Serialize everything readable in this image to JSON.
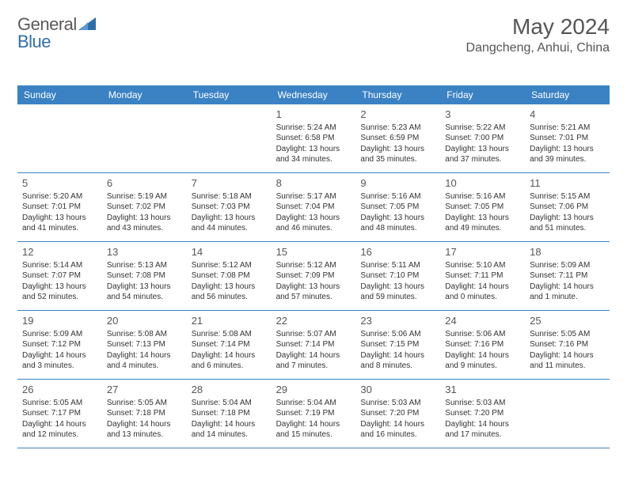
{
  "logo": {
    "word1": "General",
    "word2": "Blue"
  },
  "title": "May 2024",
  "location": "Dangcheng, Anhui, China",
  "colors": {
    "header_bg": "#3b82c4",
    "header_text": "#ffffff",
    "border": "#3b82c4",
    "text": "#333333",
    "title_text": "#555555",
    "background": "#ffffff"
  },
  "typography": {
    "title_fontsize": 28,
    "location_fontsize": 16,
    "dayheader_fontsize": 12,
    "daynum_fontsize": 13,
    "body_fontsize": 10
  },
  "dayNames": [
    "Sunday",
    "Monday",
    "Tuesday",
    "Wednesday",
    "Thursday",
    "Friday",
    "Saturday"
  ],
  "weeks": [
    [
      {
        "n": "",
        "sr": "",
        "ss": "",
        "dl": ""
      },
      {
        "n": "",
        "sr": "",
        "ss": "",
        "dl": ""
      },
      {
        "n": "",
        "sr": "",
        "ss": "",
        "dl": ""
      },
      {
        "n": "1",
        "sr": "Sunrise: 5:24 AM",
        "ss": "Sunset: 6:58 PM",
        "dl": "Daylight: 13 hours and 34 minutes."
      },
      {
        "n": "2",
        "sr": "Sunrise: 5:23 AM",
        "ss": "Sunset: 6:59 PM",
        "dl": "Daylight: 13 hours and 35 minutes."
      },
      {
        "n": "3",
        "sr": "Sunrise: 5:22 AM",
        "ss": "Sunset: 7:00 PM",
        "dl": "Daylight: 13 hours and 37 minutes."
      },
      {
        "n": "4",
        "sr": "Sunrise: 5:21 AM",
        "ss": "Sunset: 7:01 PM",
        "dl": "Daylight: 13 hours and 39 minutes."
      }
    ],
    [
      {
        "n": "5",
        "sr": "Sunrise: 5:20 AM",
        "ss": "Sunset: 7:01 PM",
        "dl": "Daylight: 13 hours and 41 minutes."
      },
      {
        "n": "6",
        "sr": "Sunrise: 5:19 AM",
        "ss": "Sunset: 7:02 PM",
        "dl": "Daylight: 13 hours and 43 minutes."
      },
      {
        "n": "7",
        "sr": "Sunrise: 5:18 AM",
        "ss": "Sunset: 7:03 PM",
        "dl": "Daylight: 13 hours and 44 minutes."
      },
      {
        "n": "8",
        "sr": "Sunrise: 5:17 AM",
        "ss": "Sunset: 7:04 PM",
        "dl": "Daylight: 13 hours and 46 minutes."
      },
      {
        "n": "9",
        "sr": "Sunrise: 5:16 AM",
        "ss": "Sunset: 7:05 PM",
        "dl": "Daylight: 13 hours and 48 minutes."
      },
      {
        "n": "10",
        "sr": "Sunrise: 5:16 AM",
        "ss": "Sunset: 7:05 PM",
        "dl": "Daylight: 13 hours and 49 minutes."
      },
      {
        "n": "11",
        "sr": "Sunrise: 5:15 AM",
        "ss": "Sunset: 7:06 PM",
        "dl": "Daylight: 13 hours and 51 minutes."
      }
    ],
    [
      {
        "n": "12",
        "sr": "Sunrise: 5:14 AM",
        "ss": "Sunset: 7:07 PM",
        "dl": "Daylight: 13 hours and 52 minutes."
      },
      {
        "n": "13",
        "sr": "Sunrise: 5:13 AM",
        "ss": "Sunset: 7:08 PM",
        "dl": "Daylight: 13 hours and 54 minutes."
      },
      {
        "n": "14",
        "sr": "Sunrise: 5:12 AM",
        "ss": "Sunset: 7:08 PM",
        "dl": "Daylight: 13 hours and 56 minutes."
      },
      {
        "n": "15",
        "sr": "Sunrise: 5:12 AM",
        "ss": "Sunset: 7:09 PM",
        "dl": "Daylight: 13 hours and 57 minutes."
      },
      {
        "n": "16",
        "sr": "Sunrise: 5:11 AM",
        "ss": "Sunset: 7:10 PM",
        "dl": "Daylight: 13 hours and 59 minutes."
      },
      {
        "n": "17",
        "sr": "Sunrise: 5:10 AM",
        "ss": "Sunset: 7:11 PM",
        "dl": "Daylight: 14 hours and 0 minutes."
      },
      {
        "n": "18",
        "sr": "Sunrise: 5:09 AM",
        "ss": "Sunset: 7:11 PM",
        "dl": "Daylight: 14 hours and 1 minute."
      }
    ],
    [
      {
        "n": "19",
        "sr": "Sunrise: 5:09 AM",
        "ss": "Sunset: 7:12 PM",
        "dl": "Daylight: 14 hours and 3 minutes."
      },
      {
        "n": "20",
        "sr": "Sunrise: 5:08 AM",
        "ss": "Sunset: 7:13 PM",
        "dl": "Daylight: 14 hours and 4 minutes."
      },
      {
        "n": "21",
        "sr": "Sunrise: 5:08 AM",
        "ss": "Sunset: 7:14 PM",
        "dl": "Daylight: 14 hours and 6 minutes."
      },
      {
        "n": "22",
        "sr": "Sunrise: 5:07 AM",
        "ss": "Sunset: 7:14 PM",
        "dl": "Daylight: 14 hours and 7 minutes."
      },
      {
        "n": "23",
        "sr": "Sunrise: 5:06 AM",
        "ss": "Sunset: 7:15 PM",
        "dl": "Daylight: 14 hours and 8 minutes."
      },
      {
        "n": "24",
        "sr": "Sunrise: 5:06 AM",
        "ss": "Sunset: 7:16 PM",
        "dl": "Daylight: 14 hours and 9 minutes."
      },
      {
        "n": "25",
        "sr": "Sunrise: 5:05 AM",
        "ss": "Sunset: 7:16 PM",
        "dl": "Daylight: 14 hours and 11 minutes."
      }
    ],
    [
      {
        "n": "26",
        "sr": "Sunrise: 5:05 AM",
        "ss": "Sunset: 7:17 PM",
        "dl": "Daylight: 14 hours and 12 minutes."
      },
      {
        "n": "27",
        "sr": "Sunrise: 5:05 AM",
        "ss": "Sunset: 7:18 PM",
        "dl": "Daylight: 14 hours and 13 minutes."
      },
      {
        "n": "28",
        "sr": "Sunrise: 5:04 AM",
        "ss": "Sunset: 7:18 PM",
        "dl": "Daylight: 14 hours and 14 minutes."
      },
      {
        "n": "29",
        "sr": "Sunrise: 5:04 AM",
        "ss": "Sunset: 7:19 PM",
        "dl": "Daylight: 14 hours and 15 minutes."
      },
      {
        "n": "30",
        "sr": "Sunrise: 5:03 AM",
        "ss": "Sunset: 7:20 PM",
        "dl": "Daylight: 14 hours and 16 minutes."
      },
      {
        "n": "31",
        "sr": "Sunrise: 5:03 AM",
        "ss": "Sunset: 7:20 PM",
        "dl": "Daylight: 14 hours and 17 minutes."
      },
      {
        "n": "",
        "sr": "",
        "ss": "",
        "dl": ""
      }
    ]
  ]
}
